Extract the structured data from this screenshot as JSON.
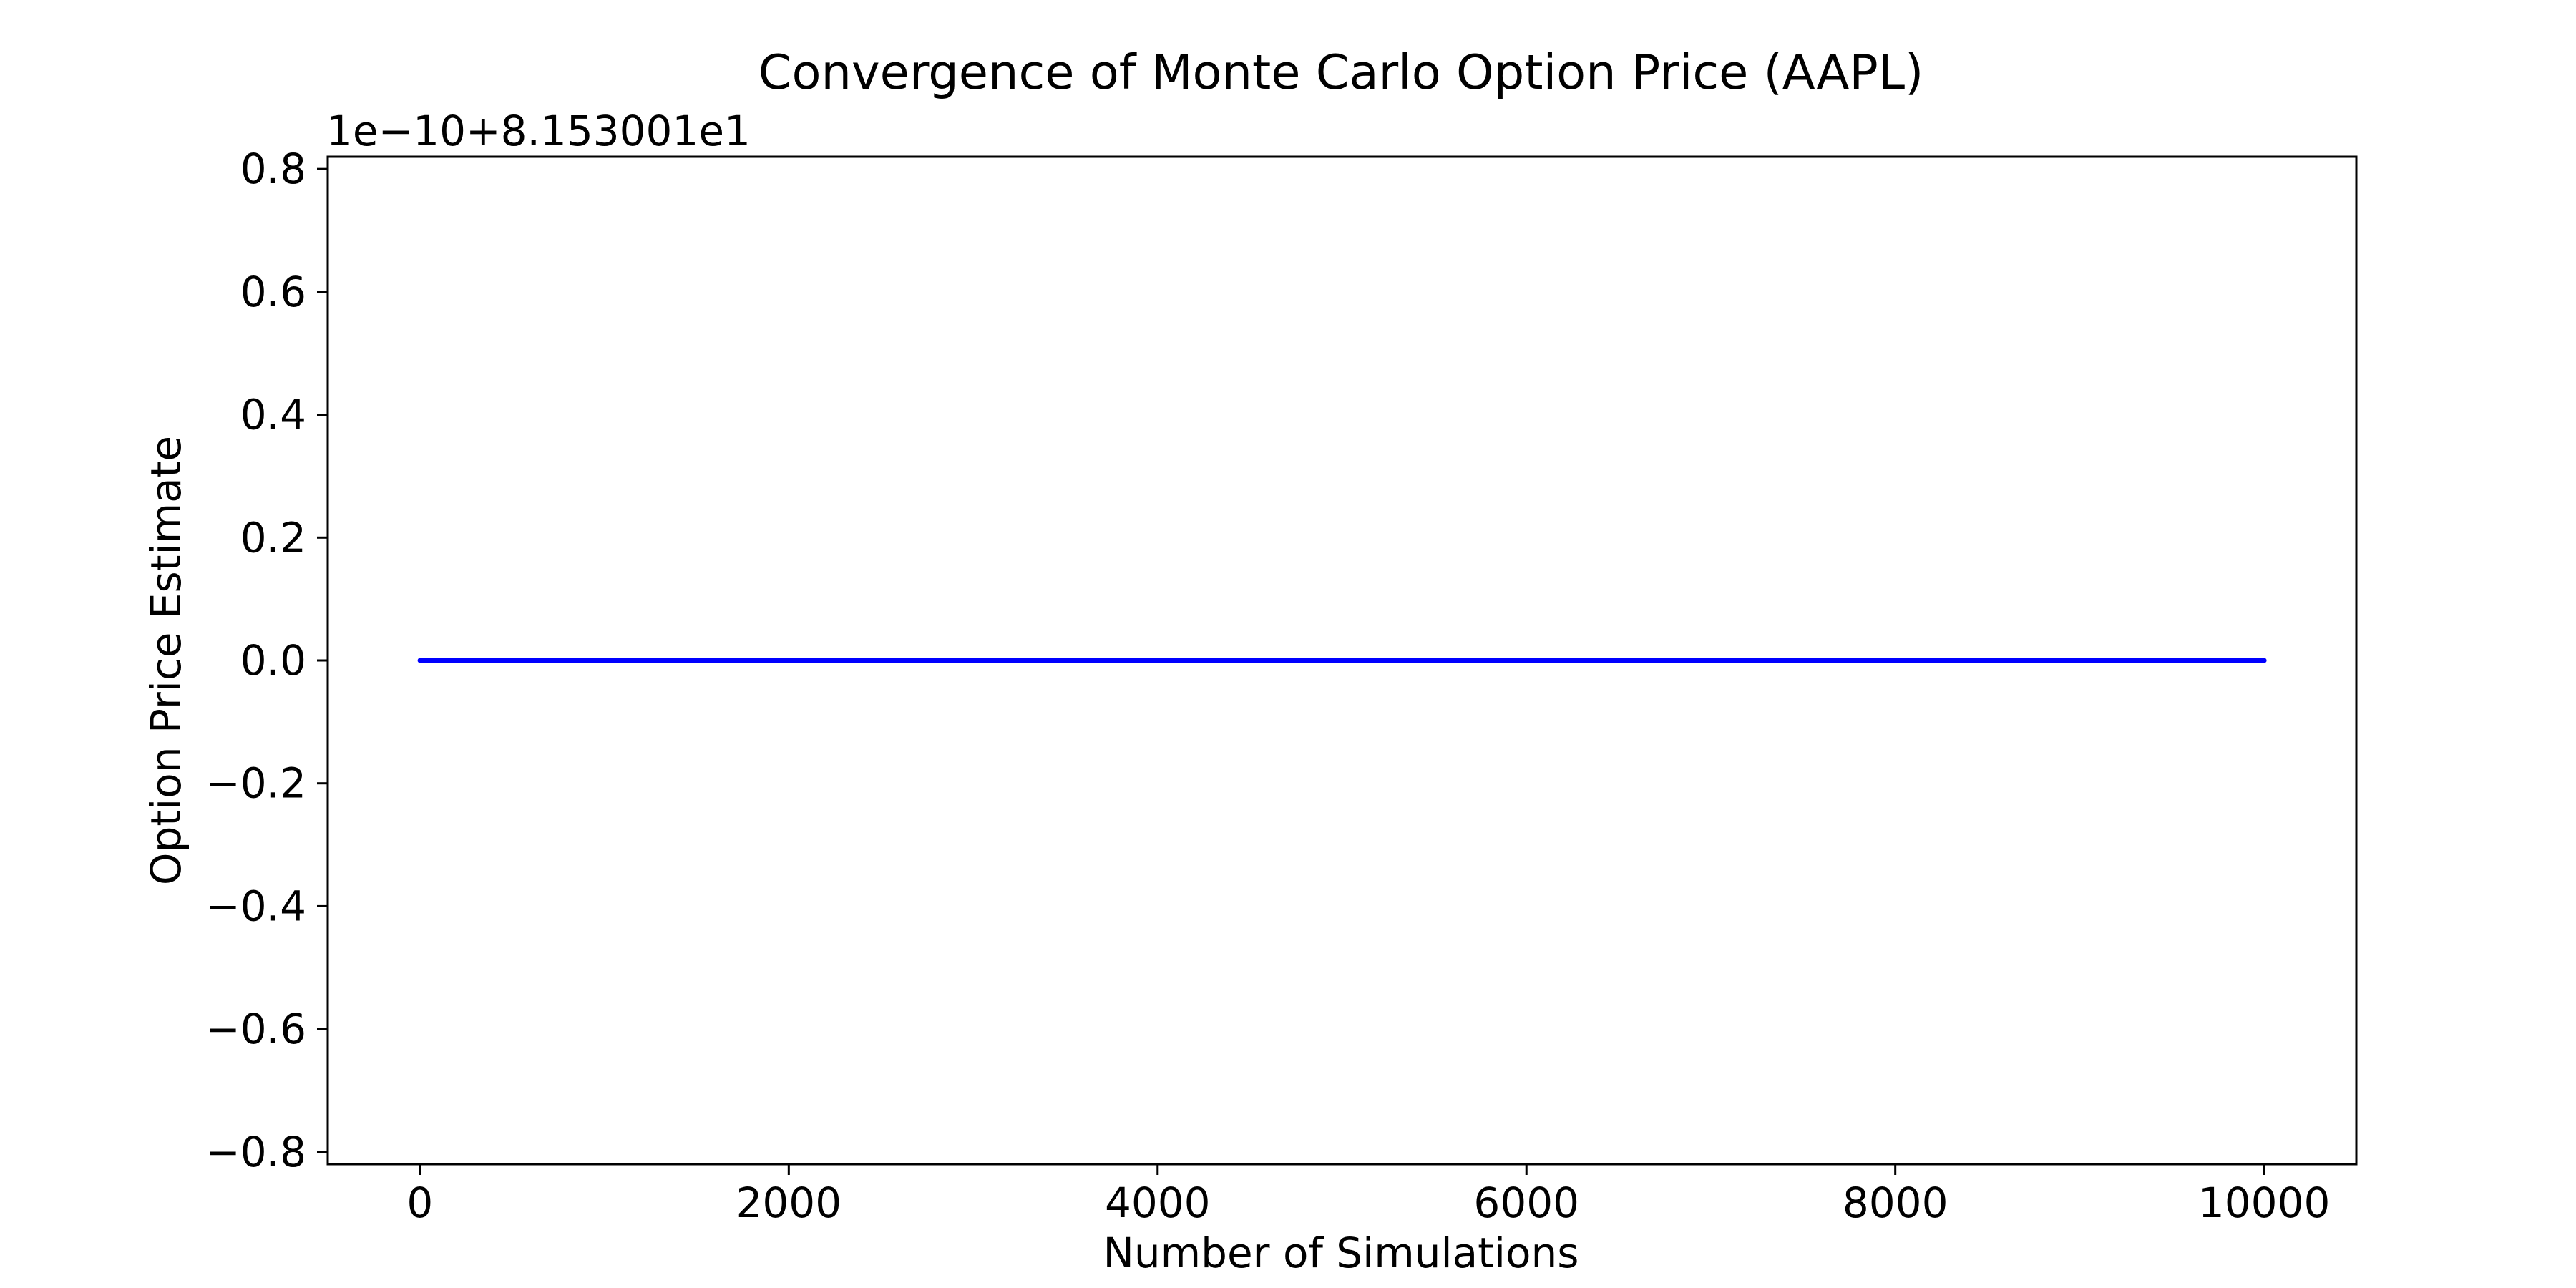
{
  "chart_data": {
    "type": "line",
    "title": "Convergence of Monte Carlo Option Price (AAPL)",
    "xlabel": "Number of Simulations",
    "ylabel": "Option Price Estimate",
    "offset_label": "1e−10+8.153001e1",
    "xlim": [
      -500,
      10500
    ],
    "ylim": [
      -0.82,
      0.82
    ],
    "xticks": [
      0,
      2000,
      4000,
      6000,
      8000,
      10000
    ],
    "xtick_labels": [
      "0",
      "2000",
      "4000",
      "6000",
      "8000",
      "10000"
    ],
    "yticks": [
      -0.8,
      -0.6,
      -0.4,
      -0.2,
      0.0,
      0.2,
      0.4,
      0.6,
      0.8
    ],
    "ytick_labels": [
      "−0.8",
      "−0.6",
      "−0.4",
      "−0.2",
      "0.0",
      "0.2",
      "0.4",
      "0.6",
      "0.8"
    ],
    "grid": false,
    "series": [
      {
        "color": "#0000ff",
        "x": [
          1,
          10000
        ],
        "y": [
          0.0,
          0.0
        ]
      }
    ]
  }
}
